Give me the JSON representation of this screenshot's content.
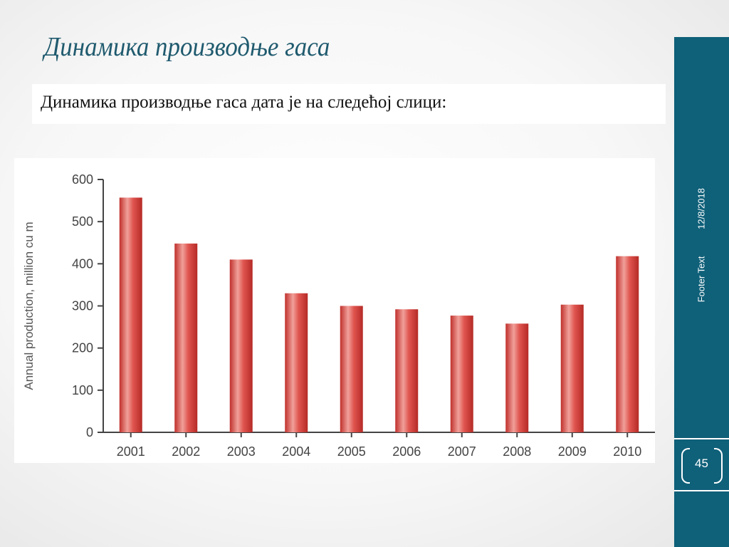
{
  "slide": {
    "title": "Динамика производње гаса",
    "body_text": "Динамика производње гаса дата је на следећој слици:"
  },
  "sidebar": {
    "date": "12/8/2018",
    "footer_text": "Footer Text",
    "page_number": "45",
    "color": "#0f6079"
  },
  "chart_data": {
    "type": "bar",
    "title": "",
    "xlabel": "",
    "ylabel": "Annual production, million cu m",
    "ylim": [
      0,
      600
    ],
    "yticks": [
      0,
      100,
      200,
      300,
      400,
      500,
      600
    ],
    "grid": false,
    "categories": [
      "2001",
      "2002",
      "2003",
      "2004",
      "2005",
      "2006",
      "2007",
      "2008",
      "2009",
      "2010"
    ],
    "values": [
      557,
      448,
      410,
      330,
      300,
      292,
      277,
      258,
      303,
      418
    ],
    "bar_color": "#d9433f"
  }
}
